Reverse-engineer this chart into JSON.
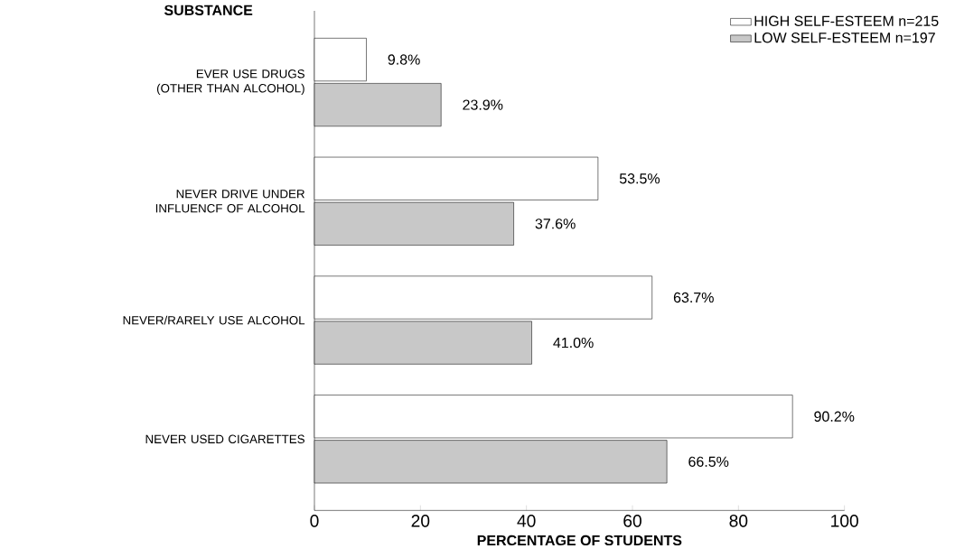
{
  "chart_data": {
    "type": "bar",
    "orientation": "horizontal",
    "ylabel": "SUBSTANCE",
    "xlabel": "PERCENTAGE OF STUDENTS",
    "categories": [
      "EVER USE DRUGS (OTHER THAN ALCOHOL)",
      "NEVER DRIVE UNDER INFLUENCF OF ALCOHOL",
      "NEVER/RARELY USE ALCOHOL",
      "NEVER USED CIGARETTES"
    ],
    "series": [
      {
        "name": "HIGH SELF-ESTEEM n=215",
        "color": "#ffffff",
        "values": [
          9.8,
          53.5,
          63.7,
          90.2
        ],
        "value_labels": [
          "9.8%",
          "53.5%",
          "63.7%",
          "90.2%"
        ]
      },
      {
        "name": "LOW SELF-ESTEEM n=197",
        "color": "#c8c8c8",
        "values": [
          23.9,
          37.6,
          41.0,
          66.5
        ],
        "value_labels": [
          "23.9%",
          "37.6%",
          "41.0%",
          "66.5%"
        ]
      }
    ],
    "xlim": [
      0,
      100
    ],
    "xticks": [
      0,
      20,
      40,
      60,
      80,
      100
    ],
    "legend": "top right"
  }
}
